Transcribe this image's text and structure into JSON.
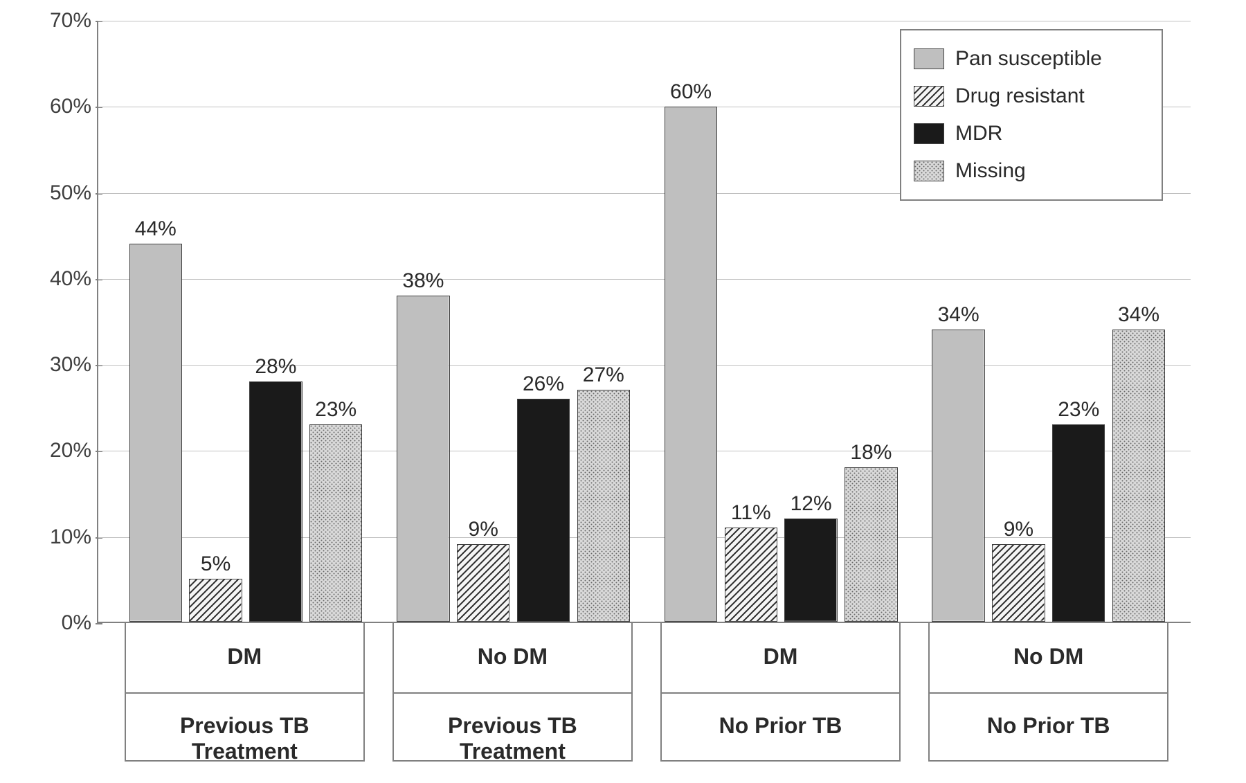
{
  "chart": {
    "type": "bar",
    "background_color": "#ffffff",
    "grid_color": "#c0c0c0",
    "axis_color": "#808080",
    "text_color": "#2a2a2a",
    "y": {
      "min": 0,
      "max": 70,
      "step": 10,
      "labels": [
        "0%",
        "10%",
        "20%",
        "30%",
        "40%",
        "50%",
        "60%",
        "70%"
      ]
    },
    "series": [
      {
        "name": "Pan susceptible",
        "fill": "pan",
        "color": "#bfbfbf"
      },
      {
        "name": "Drug resistant",
        "fill": "diag",
        "color": "#ffffff"
      },
      {
        "name": "MDR",
        "fill": "solid",
        "color": "#1a1a1a"
      },
      {
        "name": "Missing",
        "fill": "dots",
        "color": "#b8b8b8"
      }
    ],
    "legend_fontsize": 30,
    "label_fontsize": 30,
    "bar_border_color": "#404040",
    "groups": [
      {
        "top_label": "DM",
        "bottom_label": "Previous TB Treatment",
        "left_pct": 2.5,
        "width_pct": 22,
        "bars": [
          {
            "value": 44,
            "label": "44%"
          },
          {
            "value": 5,
            "label": "5%"
          },
          {
            "value": 28,
            "label": "28%"
          },
          {
            "value": 23,
            "label": "23%"
          }
        ]
      },
      {
        "top_label": "No DM",
        "bottom_label": "Previous TB Treatment",
        "left_pct": 27,
        "width_pct": 22,
        "bars": [
          {
            "value": 38,
            "label": "38%"
          },
          {
            "value": 9,
            "label": "9%"
          },
          {
            "value": 26,
            "label": "26%"
          },
          {
            "value": 27,
            "label": "27%"
          }
        ]
      },
      {
        "top_label": "DM",
        "bottom_label": "No Prior TB",
        "left_pct": 51.5,
        "width_pct": 22,
        "bars": [
          {
            "value": 60,
            "label": "60%"
          },
          {
            "value": 11,
            "label": "11%"
          },
          {
            "value": 12,
            "label": "12%"
          },
          {
            "value": 18,
            "label": "18%"
          }
        ]
      },
      {
        "top_label": "No DM",
        "bottom_label": "No Prior TB",
        "left_pct": 76,
        "width_pct": 22,
        "bars": [
          {
            "value": 34,
            "label": "34%"
          },
          {
            "value": 9,
            "label": "9%"
          },
          {
            "value": 23,
            "label": "23%"
          },
          {
            "value": 34,
            "label": "34%"
          }
        ]
      }
    ],
    "bar_width_pct": 22,
    "bar_gap_pct": 3
  }
}
